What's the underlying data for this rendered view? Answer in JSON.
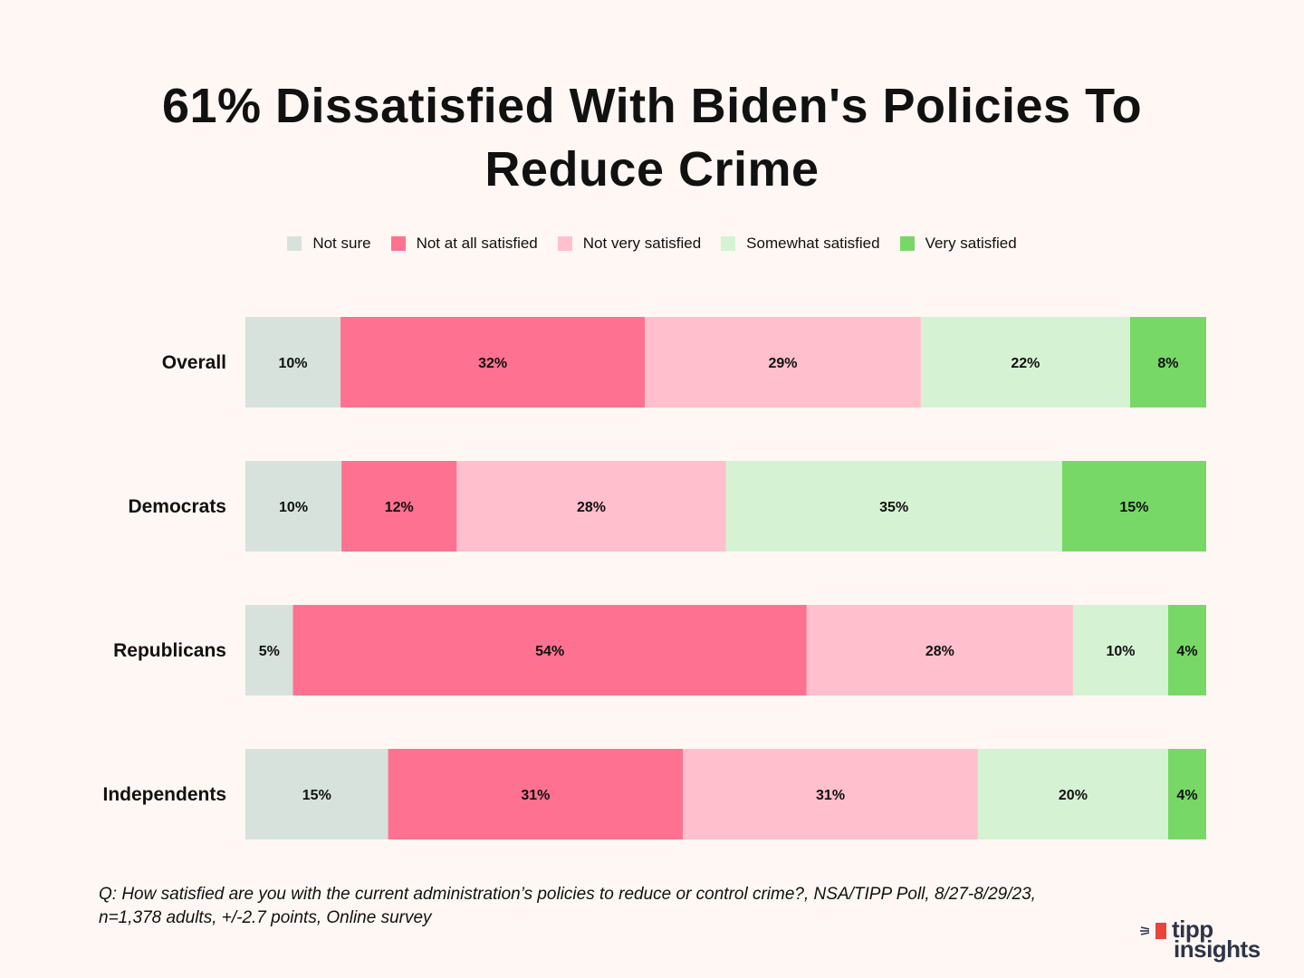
{
  "chart_data": {
    "type": "bar",
    "orientation": "horizontal",
    "stacked": true,
    "title": "61% Dissatisfied With Biden's Policies To Reduce Crime",
    "title_lines": [
      "61% Dissatisfied With Biden's Policies To",
      "Reduce Crime"
    ],
    "categories": [
      "Overall",
      "Democrats",
      "Republicans",
      "Independents"
    ],
    "series": [
      {
        "name": "Not sure",
        "color": "#d7e2dc",
        "values": [
          10,
          10,
          5,
          15
        ],
        "labels": [
          "10%",
          "10%",
          "5%",
          "15%"
        ]
      },
      {
        "name": "Not at all satisfied",
        "color": "#ff7190",
        "values": [
          32,
          12,
          54,
          31
        ],
        "labels": [
          "32%",
          "12%",
          "54%",
          "31%"
        ]
      },
      {
        "name": "Not very satisfied",
        "color": "#ffbfcd",
        "values": [
          29,
          28,
          28,
          31
        ],
        "labels": [
          "29%",
          "28%",
          "28%",
          "31%"
        ]
      },
      {
        "name": "Somewhat satisfied",
        "color": "#d5f3d2",
        "values": [
          22,
          35,
          10,
          20
        ],
        "labels": [
          "22%",
          "35%",
          "10%",
          "20%"
        ]
      },
      {
        "name": "Very satisfied",
        "color": "#77d867",
        "values": [
          8,
          15,
          4,
          4
        ],
        "labels": [
          "8%",
          "15%",
          "4%",
          "4%"
        ]
      }
    ],
    "legend_position": "top-center",
    "grid": false
  },
  "note": {
    "line1": "Q: How satisfied are you with the current administration’s policies to reduce or control crime?, NSA/TIPP Poll, 8/27-8/29/23,",
    "line2": "n=1,378 adults, +/-2.7 points, Online survey"
  },
  "logo": {
    "line1": "tipp",
    "line2": "insights"
  }
}
